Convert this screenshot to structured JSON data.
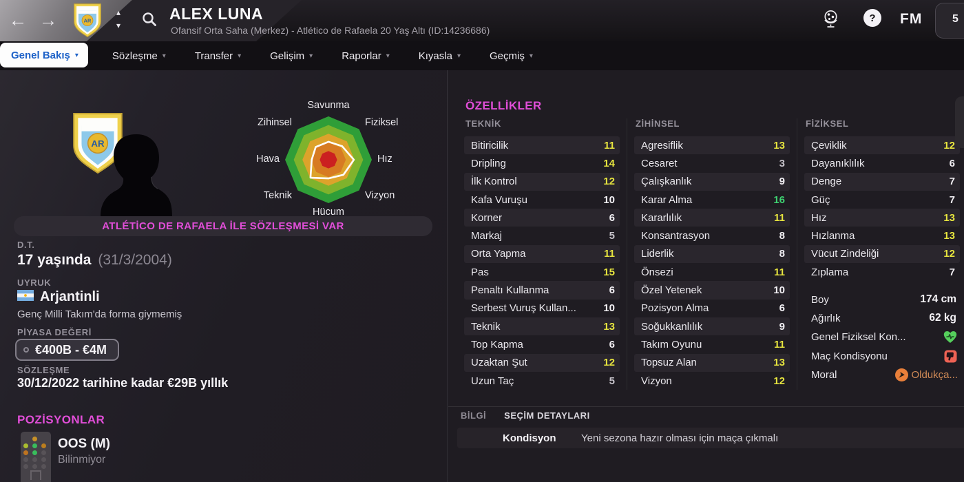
{
  "header": {
    "title": "ALEX LUNA",
    "subtitle": "Ofansif Orta Saha (Merkez) - Atlético de Rafaela 20 Yaş Altı (ID:14236686)",
    "back": "←",
    "forward": "→",
    "crest_chevron_up": "▴",
    "crest_chevron_down": "▾",
    "help": "?",
    "fm_logo": "FM",
    "notification_count": "5"
  },
  "tabs": {
    "items": [
      {
        "label": "Genel Bakış",
        "selected": true
      },
      {
        "label": "Sözleşme",
        "selected": false
      },
      {
        "label": "Transfer",
        "selected": false
      },
      {
        "label": "Gelişim",
        "selected": false
      },
      {
        "label": "Raporlar",
        "selected": false
      },
      {
        "label": "Kıyasla",
        "selected": false
      },
      {
        "label": "Geçmiş",
        "selected": false
      }
    ],
    "chevron": "▾"
  },
  "profile": {
    "contract_banner": "ATLÉTİCO DE RAFAELA İLE SÖZLEŞMESİ VAR",
    "dob_label": "D.T.",
    "age": "17 yaşında",
    "birthdate": "(31/3/2004)",
    "nationality_label": "UYRUK",
    "nationality": "Arjantinli",
    "national_team_note": "Genç Milli Takım'da forma giymemiş",
    "value_label": "PİYASA DEĞERİ",
    "value": "€400B - €4M",
    "contract_label": "SÖZLEŞME",
    "contract": "30/12/2022 tarihine kadar €29B yıllık"
  },
  "positions": {
    "header": "POZİSYONLAR",
    "primary": "OOS (M)",
    "secondary": "Bilinmiyor",
    "pitch_rows": [
      [
        null,
        "#d59b28",
        null
      ],
      [
        "#b6cc30",
        "#3bcb61",
        "#c9861e"
      ],
      [
        "#cd7c20",
        "#3bcb61",
        "#5d585d"
      ],
      [
        "#5d585d",
        "#5d585d",
        "#5d585d"
      ],
      [
        "#5d585d",
        "#5d585d",
        "#5d585d"
      ]
    ]
  },
  "attributes": {
    "header": "ÖZELLİKLER",
    "columns": [
      {
        "name": "TEKNİK",
        "rows": [
          {
            "label": "Bitiricilik",
            "value": 11
          },
          {
            "label": "Dripling",
            "value": 14
          },
          {
            "label": "İlk Kontrol",
            "value": 12
          },
          {
            "label": "Kafa Vuruşu",
            "value": 10
          },
          {
            "label": "Korner",
            "value": 6
          },
          {
            "label": "Markaj",
            "value": 5
          },
          {
            "label": "Orta Yapma",
            "value": 11
          },
          {
            "label": "Pas",
            "value": 15
          },
          {
            "label": "Penaltı Kullanma",
            "value": 6
          },
          {
            "label": "Serbest Vuruş Kullan...",
            "value": 10
          },
          {
            "label": "Teknik",
            "value": 13
          },
          {
            "label": "Top Kapma",
            "value": 6
          },
          {
            "label": "Uzaktan Şut",
            "value": 12
          },
          {
            "label": "Uzun Taç",
            "value": 5
          }
        ]
      },
      {
        "name": "ZİHİNSEL",
        "rows": [
          {
            "label": "Agresiflik",
            "value": 13
          },
          {
            "label": "Cesaret",
            "value": 3
          },
          {
            "label": "Çalışkanlık",
            "value": 9
          },
          {
            "label": "Karar Alma",
            "value": 16
          },
          {
            "label": "Kararlılık",
            "value": 11
          },
          {
            "label": "Konsantrasyon",
            "value": 8
          },
          {
            "label": "Liderlik",
            "value": 8
          },
          {
            "label": "Önsezi",
            "value": 11
          },
          {
            "label": "Özel Yetenek",
            "value": 10
          },
          {
            "label": "Pozisyon Alma",
            "value": 6
          },
          {
            "label": "Soğukkanlılık",
            "value": 9
          },
          {
            "label": "Takım Oyunu",
            "value": 11
          },
          {
            "label": "Topsuz Alan",
            "value": 13
          },
          {
            "label": "Vizyon",
            "value": 12
          }
        ]
      },
      {
        "name": "FİZİKSEL",
        "rows": [
          {
            "label": "Çeviklik",
            "value": 12
          },
          {
            "label": "Dayanıklılık",
            "value": 6
          },
          {
            "label": "Denge",
            "value": 7
          },
          {
            "label": "Güç",
            "value": 7
          },
          {
            "label": "Hız",
            "value": 13
          },
          {
            "label": "Hızlanma",
            "value": 13
          },
          {
            "label": "Vücut Zindeliği",
            "value": 12
          },
          {
            "label": "Zıplama",
            "value": 7
          }
        ]
      }
    ]
  },
  "physical_info": {
    "rows": [
      {
        "label": "Boy",
        "value": "174 cm"
      },
      {
        "label": "Ağırlık",
        "value": "62 kg"
      },
      {
        "label": "Genel Fiziksel Kon...",
        "icon": "heart-pulse-icon"
      },
      {
        "label": "Maç Kondisyonu",
        "icon": "thumb-down-icon"
      },
      {
        "label": "Moral",
        "icon": "moral-arrow-icon",
        "value": "Oldukça..."
      }
    ]
  },
  "selection": {
    "tab_info": "BİLGİ",
    "tab_details": "SEÇİM DETAYLARI",
    "row_label": "Kondisyon",
    "row_value": "Yeni sezona hazır olması için maça çıkmalı"
  },
  "chart_data": {
    "type": "radar",
    "title": "",
    "axes": [
      "Savunma",
      "Fiziksel",
      "Hız",
      "Vizyon",
      "Hücum",
      "Teknik",
      "Hava",
      "Zihinsel"
    ],
    "values": [
      8.3,
      8.9,
      11.7,
      9.8,
      8.6,
      11.7,
      7.7,
      8.3
    ],
    "scale_max": 20,
    "ring_colors": [
      "#2f9e38",
      "#7fb32c",
      "#dda32b",
      "#d77b22",
      "#cb2020"
    ],
    "polygon_color": "#ffffff",
    "legend": "none",
    "grid": "concentric-octagons"
  },
  "colors": {
    "accent_pink": "#e14ed8",
    "attr_low": "#c6c3ca",
    "attr_mid": "#f1eff3",
    "attr_good": "#e6e43f",
    "attr_high": "#3ed171",
    "moral_text": "#d08a56",
    "selected_tab_text": "#1e62c8"
  }
}
